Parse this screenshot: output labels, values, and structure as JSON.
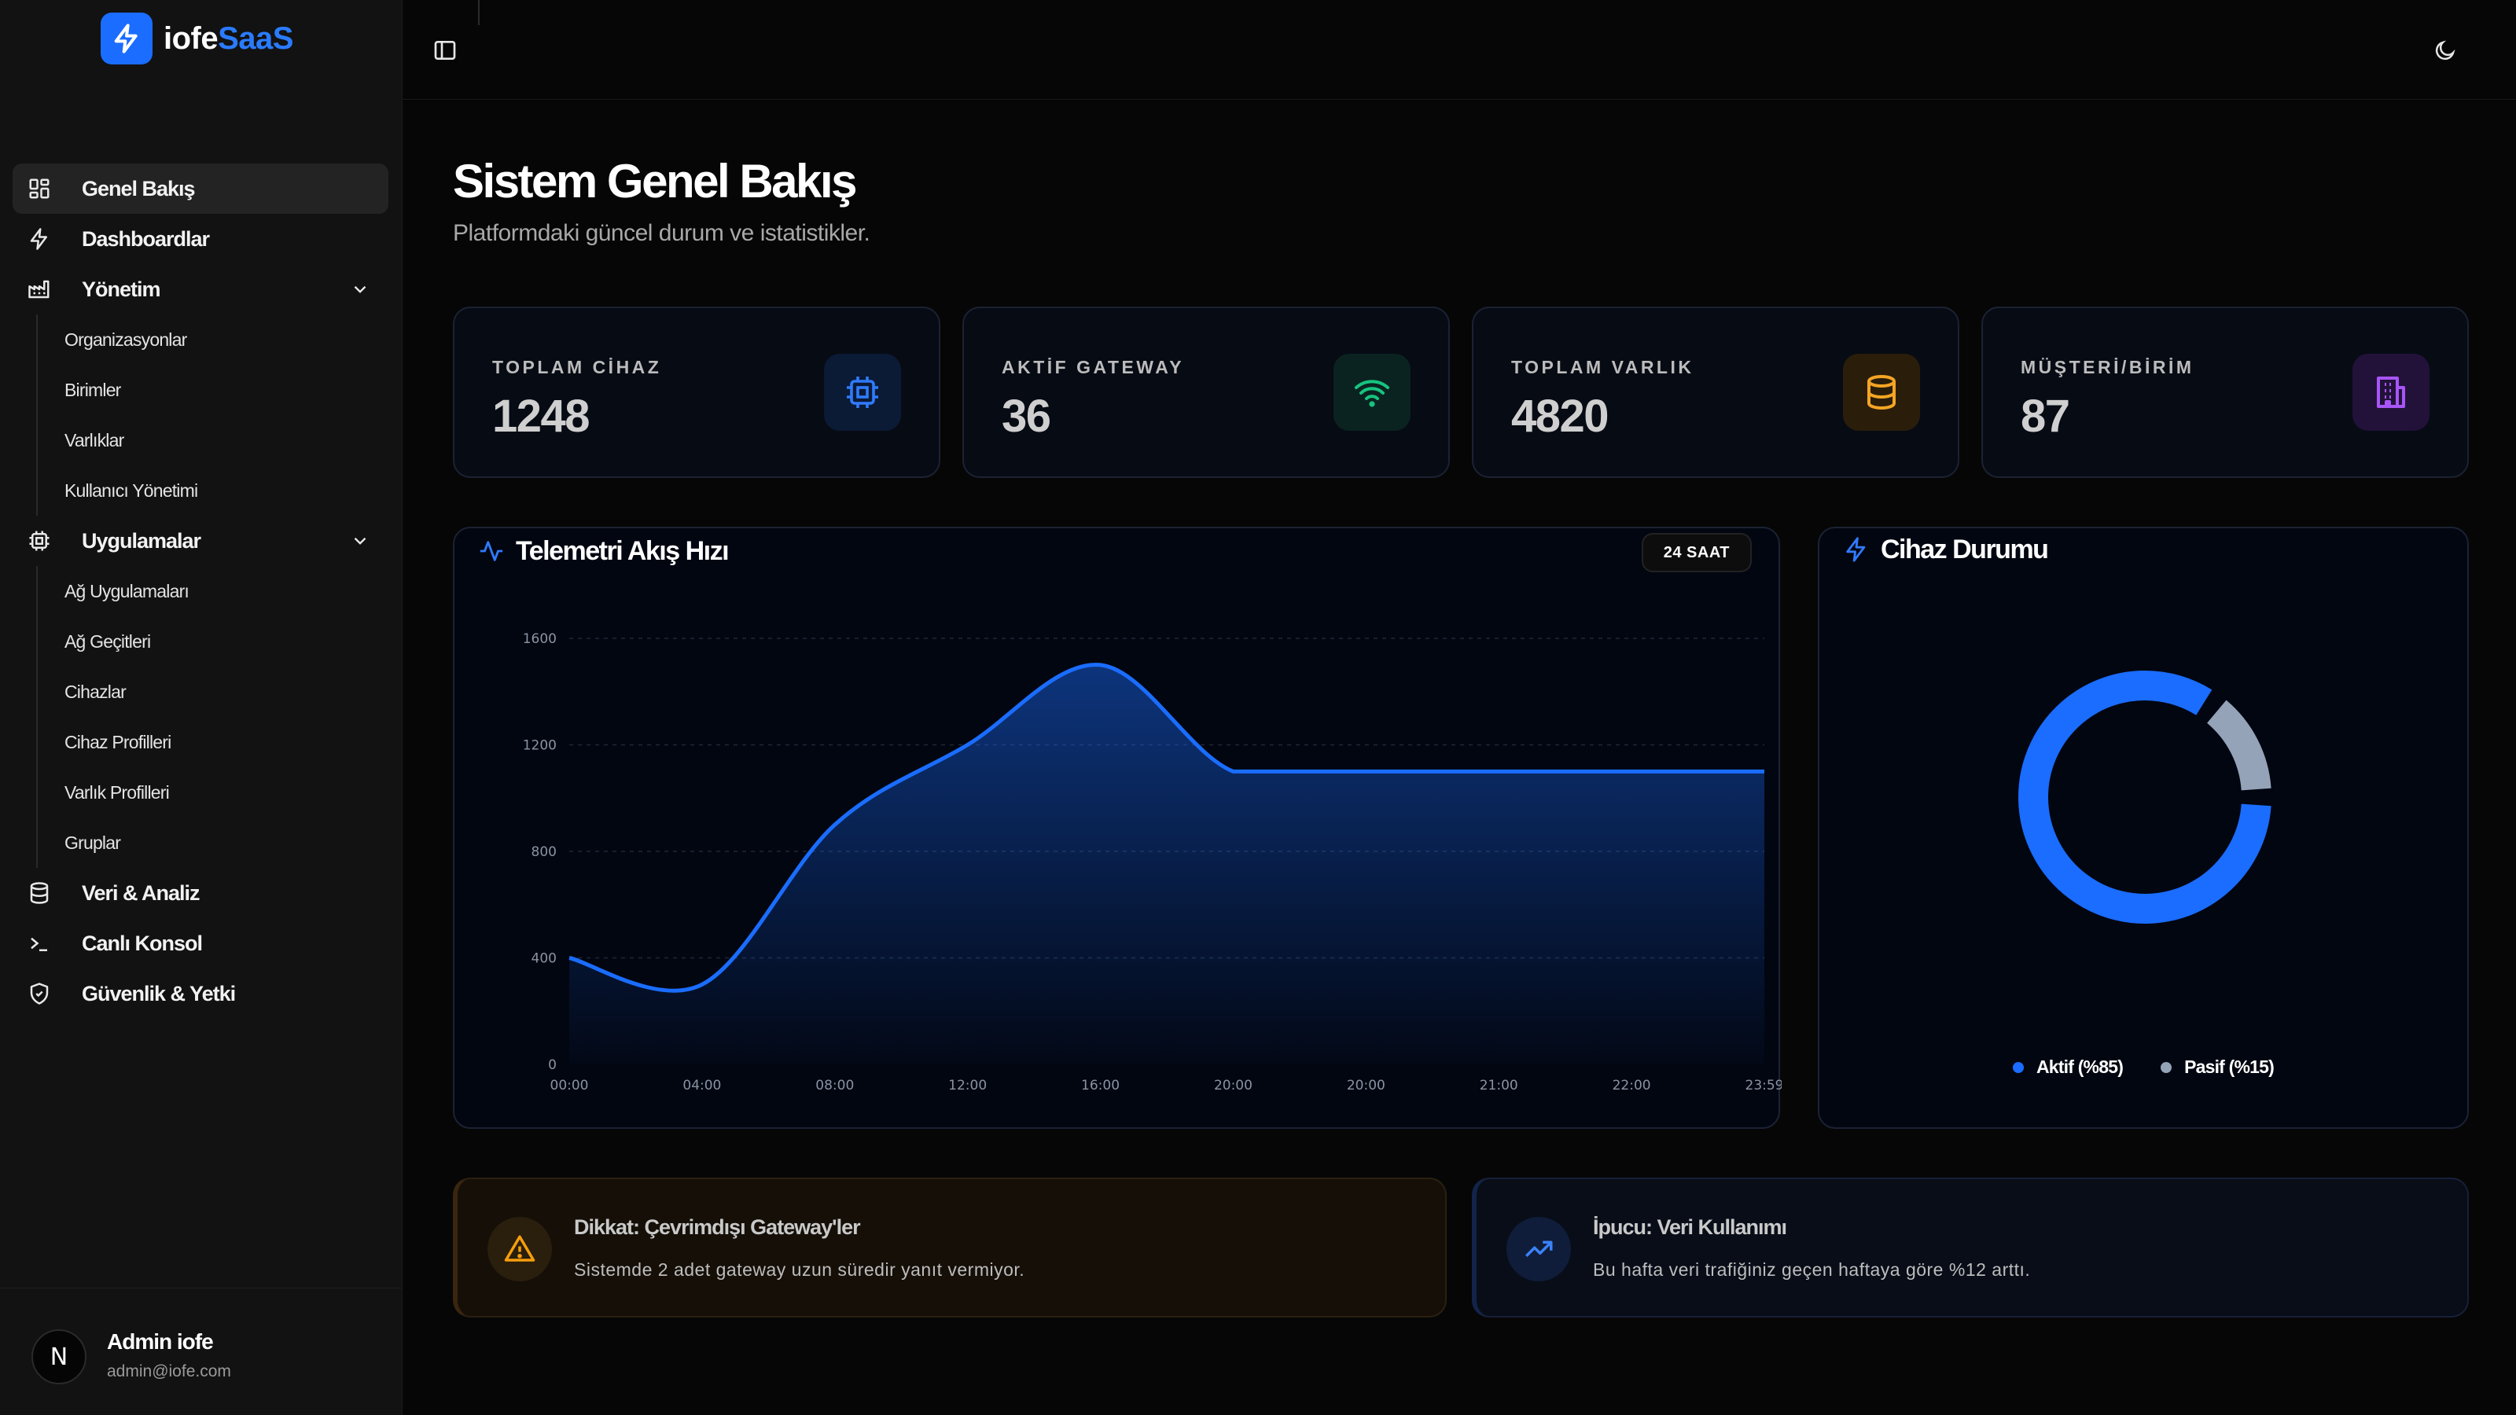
{
  "brand": {
    "name_a": "iofe",
    "name_b": "SaaS"
  },
  "sidebar": {
    "items": [
      {
        "label": "Genel Bakış"
      },
      {
        "label": "Dashboardlar"
      },
      {
        "label": "Yönetim"
      },
      {
        "label": "Uygulamalar"
      },
      {
        "label": "Veri & Analiz"
      },
      {
        "label": "Canlı Konsol"
      },
      {
        "label": "Güvenlik & Yetki"
      }
    ],
    "yonetim_sub": [
      "Organizasyonlar",
      "Birimler",
      "Varlıklar",
      "Kullanıcı Yönetimi"
    ],
    "uygulamalar_sub": [
      "Ağ Uygulamaları",
      "Ağ Geçitleri",
      "Cihazlar",
      "Cihaz Profilleri",
      "Varlık Profilleri",
      "Gruplar"
    ]
  },
  "user": {
    "avatar_letter": "N",
    "name": "Admin iofe",
    "email": "admin@iofe.com"
  },
  "page": {
    "title": "Sistem Genel Bakış",
    "subtitle": "Platformdaki güncel durum ve istatistikler."
  },
  "stats": [
    {
      "label": "TOPLAM CİHAZ",
      "value": "1248",
      "icon": "cpu-icon",
      "color": "#2f7bff"
    },
    {
      "label": "AKTİF GATEWAY",
      "value": "36",
      "icon": "wifi-icon",
      "color": "#16c47f"
    },
    {
      "label": "TOPLAM VARLIK",
      "value": "4820",
      "icon": "database-icon",
      "color": "#f5a524"
    },
    {
      "label": "MÜŞTERİ/BİRİM",
      "value": "87",
      "icon": "building-icon",
      "color": "#a855f7"
    }
  ],
  "telemetry": {
    "title": "Telemetri Akış Hızı",
    "badge": "24 SAAT"
  },
  "device_status": {
    "title": "Cihaz Durumu",
    "legend": [
      "Aktif (%85)",
      "Pasif (%15)"
    ]
  },
  "alerts": {
    "warning": {
      "title": "Dikkat: Çevrimdışı Gateway'ler",
      "desc": "Sistemde 2 adet gateway uzun süredir yanıt vermiyor."
    },
    "tip": {
      "title": "İpucu: Veri Kullanımı",
      "desc": "Bu hafta veri trafiğiniz geçen haftaya göre %12 arttı."
    }
  },
  "colors": {
    "accent": "#1a6dff",
    "passive": "#94a3b8",
    "warning": "#f59e0b"
  },
  "chart_data": [
    {
      "type": "area",
      "title": "Telemetri Akış Hızı",
      "categories": [
        "00:00",
        "04:00",
        "08:00",
        "12:00",
        "16:00",
        "20:00",
        "20:00",
        "21:00",
        "22:00",
        "23:59"
      ],
      "values": [
        400,
        300,
        900,
        1200,
        1500,
        1100,
        1100,
        1100,
        1100,
        1100
      ],
      "yticks": [
        0,
        400,
        800,
        1200,
        1600
      ],
      "ylim": [
        0,
        1600
      ],
      "grid": true
    },
    {
      "type": "pie",
      "title": "Cihaz Durumu",
      "categories": [
        "Aktif (%85)",
        "Pasif (%15)"
      ],
      "values": [
        85,
        15
      ],
      "colors": [
        "#1a6dff",
        "#94a3b8"
      ],
      "legend": "bottom"
    }
  ]
}
